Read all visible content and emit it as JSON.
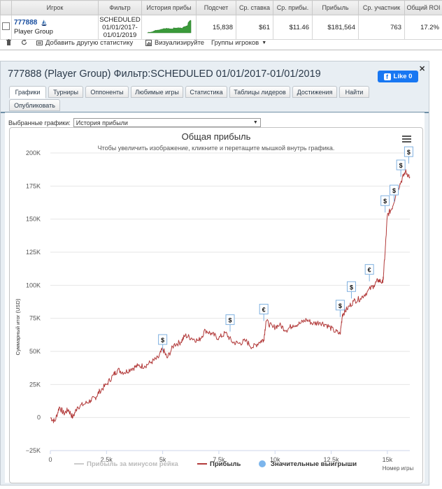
{
  "table": {
    "headers": [
      "",
      "Игрок",
      "Фильтр",
      "История прибы",
      "Подсчет",
      "Ср. ставка",
      "Ср. прибы.",
      "Прибыль",
      "Ср. участник",
      "Общий ROI"
    ],
    "row": {
      "player_id": "777888",
      "player_group": "Player Group",
      "filter_line1": "SCHEDULED",
      "filter_line2": "01/01/2017-",
      "filter_line3": "01/01/2019",
      "count": "15,838",
      "avg_stake": "$61",
      "avg_profit": "$11.46",
      "profit": "$181,564",
      "avg_field": "763",
      "roi": "17.2%"
    }
  },
  "toolbar": {
    "add_stats": "Добавить другую статистику",
    "visualize": "Визуализируйте",
    "player_groups": "Группы игроков"
  },
  "panel": {
    "title": "777888 (Player Group) Фильтр:SCHEDULED 01/01/2017-01/01/2019",
    "like_label": "Like 0",
    "tabs": [
      "Графики",
      "Турниры",
      "Оппоненты",
      "Любимые игры",
      "Статистика",
      "Таблицы лидеров",
      "Достижения",
      "Найти",
      "Опубликовать"
    ],
    "selected_charts_label": "Выбранные графики:",
    "selected_chart_value": "История прибыли"
  },
  "colors": {
    "line": "#b23a3a",
    "sparkline": "#3a9a3a",
    "marker_fill": "#ffffff",
    "marker_border": "#7fb0e0",
    "legend_dot": "#7cb5ec",
    "panel_bg": "#e8eef3",
    "tab_bg": "#6f8fa6"
  },
  "chart_data": {
    "type": "line",
    "title": "Общая прибыль",
    "subtitle": "Чтобы увеличить изображение, кликните и перетащите мышкой внутрь графика.",
    "xlabel": "Номер игры",
    "ylabel": "Суммарный итог (USD)",
    "xlim": [
      0,
      16000
    ],
    "ylim": [
      -25000,
      200000
    ],
    "x_ticks": [
      "0",
      "2.5k",
      "5k",
      "7.5k",
      "10k",
      "12.5k",
      "15k"
    ],
    "x_tick_values": [
      0,
      2500,
      5000,
      7500,
      10000,
      12500,
      15000
    ],
    "y_ticks": [
      "−25K",
      "0",
      "25K",
      "50K",
      "75K",
      "100K",
      "125K",
      "150K",
      "175K",
      "200K"
    ],
    "y_tick_values": [
      -25000,
      0,
      25000,
      50000,
      75000,
      100000,
      125000,
      150000,
      175000,
      200000
    ],
    "series": [
      {
        "name": "Прибыль",
        "x": [
          0,
          200,
          400,
          600,
          800,
          1000,
          1200,
          1500,
          1800,
          2000,
          2200,
          2500,
          2800,
          3000,
          3300,
          3600,
          3900,
          4200,
          4500,
          4800,
          5000,
          5200,
          5500,
          5800,
          6000,
          6300,
          6600,
          6900,
          7200,
          7500,
          7800,
          8100,
          8400,
          8700,
          9000,
          9300,
          9500,
          9600,
          9900,
          10200,
          10500,
          10800,
          11100,
          11400,
          11700,
          12000,
          12300,
          12600,
          12900,
          13000,
          13200,
          13500,
          13800,
          14100,
          14400,
          14600,
          14800,
          14900,
          15000,
          15200,
          15400,
          15600,
          15800,
          16000
        ],
        "y": [
          0,
          -3000,
          8000,
          3000,
          6000,
          0,
          8000,
          10000,
          13000,
          15000,
          20000,
          25000,
          32000,
          36000,
          34000,
          37000,
          39000,
          39000,
          42000,
          45000,
          52000,
          45000,
          55000,
          57000,
          62000,
          60000,
          58000,
          66000,
          63000,
          60000,
          64000,
          57000,
          56000,
          58000,
          53000,
          57000,
          59000,
          73000,
          68000,
          70000,
          66000,
          70000,
          71000,
          74000,
          71000,
          72000,
          70000,
          66000,
          63000,
          78000,
          82000,
          88000,
          90000,
          95000,
          100000,
          104000,
          102000,
          125000,
          153000,
          158000,
          170000,
          178000,
          186000,
          182000
        ]
      },
      {
        "name": "Прибыль за минусом рейка",
        "x": [],
        "y": []
      },
      {
        "name": "Значительные выигрыши",
        "x": [
          5000,
          8000,
          9500,
          12900,
          13400,
          14200,
          14900,
          15300,
          15600,
          15950
        ],
        "y": [
          50000,
          65000,
          73000,
          76000,
          90000,
          103000,
          155000,
          163000,
          182000,
          192000
        ],
        "labels": [
          "$",
          "$",
          "€",
          "$",
          "$",
          "€",
          "$",
          "$",
          "$",
          "$"
        ]
      }
    ],
    "legend": "bottom"
  }
}
